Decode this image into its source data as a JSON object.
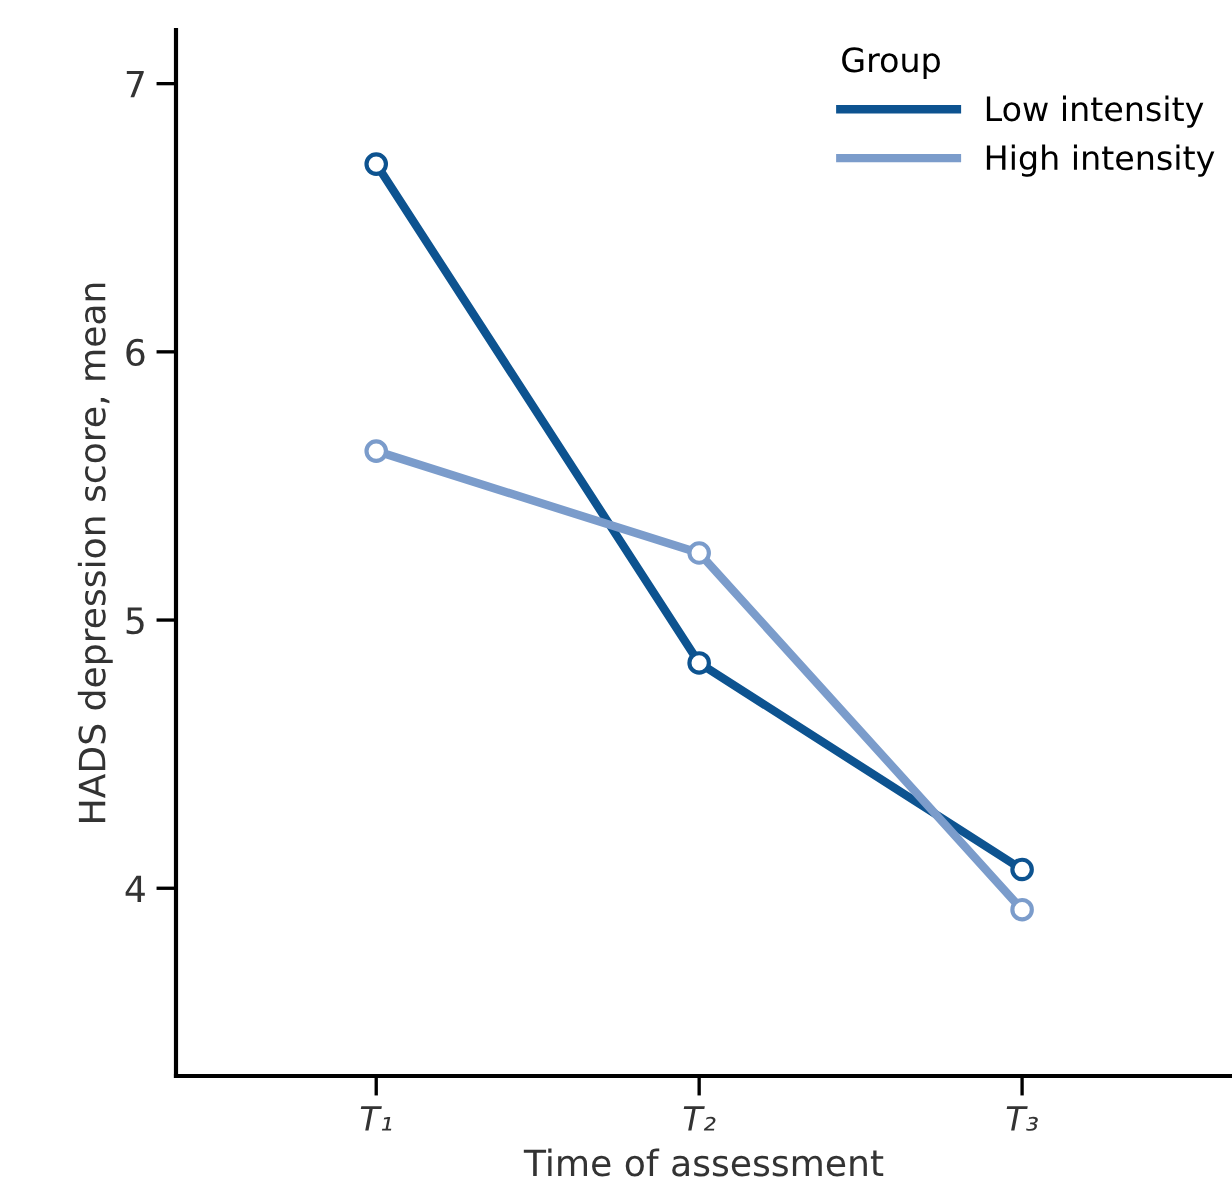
{
  "chart_data": {
    "type": "line",
    "xlabel": "Time of assessment",
    "ylabel": "HADS depression score, mean",
    "legend_title": "Group",
    "categories": [
      "T₁",
      "T₂",
      "T₃"
    ],
    "series": [
      {
        "name": "Low intensity",
        "color": "#0d5390",
        "values": [
          6.7,
          4.84,
          4.07
        ]
      },
      {
        "name": "High intensity",
        "color": "#7b9ccb",
        "values": [
          5.63,
          5.25,
          3.92
        ]
      }
    ],
    "ylim": [
      3.3,
      7.2
    ],
    "yticks": [
      4,
      5,
      6,
      7
    ],
    "marker": "circle",
    "line_style": "solid",
    "grid": false,
    "legend": "top right"
  }
}
